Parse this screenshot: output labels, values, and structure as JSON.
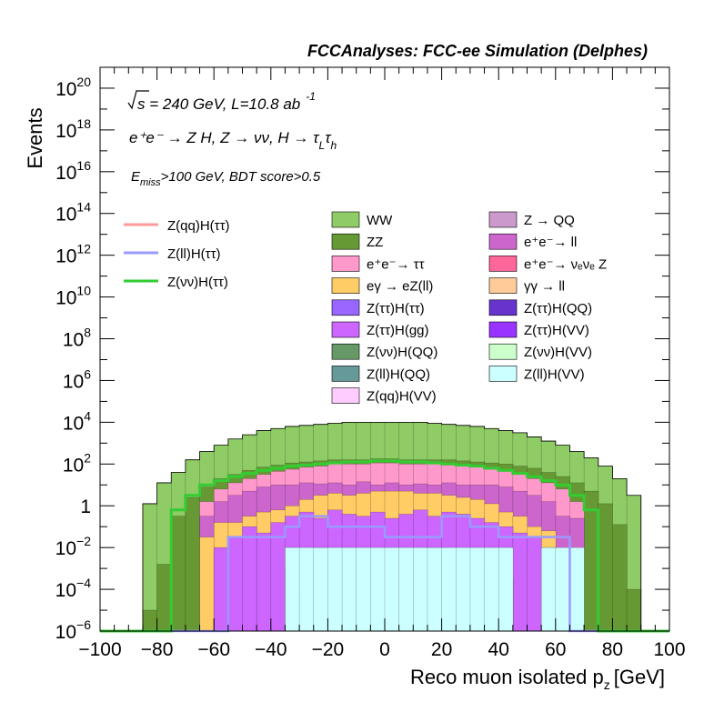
{
  "chart_data": {
    "type": "bar",
    "title": "FCCAnalyses: FCC-ee Simulation (Delphes)",
    "xlabel": "Reco muon isolated p",
    "xlabel_sub": "z",
    "xlabel_unit": "[GeV]",
    "ylabel": "Events",
    "xlim": [
      -100,
      100
    ],
    "ylim_log10": [
      -6,
      21
    ],
    "log_y": true,
    "x_ticks": [
      -100,
      -80,
      -60,
      -40,
      -20,
      0,
      20,
      40,
      60,
      80,
      100
    ],
    "x_tick_labels": [
      "−100",
      "−80",
      "−60",
      "−40",
      "−20",
      "0",
      "20",
      "40",
      "60",
      "80",
      "100"
    ],
    "y_ticks_exp": [
      -6,
      -4,
      -2,
      0,
      2,
      4,
      6,
      8,
      10,
      12,
      14,
      16,
      18,
      20
    ],
    "y_tick_special": {
      "0": "1"
    },
    "annotations": {
      "sqrt_s": "s",
      "energy_text": " = 240 GeV, L=10.8 ab",
      "lumi_exp": "-1",
      "process_text": "e⁺e⁻ → Z H, Z → νν, H → τ",
      "tau_l": "L",
      "tau2": "τ",
      "tau_h": "h",
      "cut_prefix": "E",
      "cut_sub": "miss",
      "cut_text": ">100 GeV, BDT score>0.5"
    },
    "legend_signal": [
      {
        "name": "Z(qq)H(ττ)",
        "color": "#ff9a9a"
      },
      {
        "name": "Z(ll)H(ττ)",
        "color": "#9a9aff"
      },
      {
        "name": "Z(νν)H(ττ)",
        "color": "#33cc33"
      }
    ],
    "legend_background": [
      {
        "name": "WW",
        "color": "#8fcc66"
      },
      {
        "name": "Z → QQ",
        "color": "#cc99cc"
      },
      {
        "name": "ZZ",
        "color": "#669933"
      },
      {
        "name": "e⁺e⁻→ ll",
        "color": "#cc66cc"
      },
      {
        "name": "e⁺e⁻→ ττ",
        "color": "#ff99cc"
      },
      {
        "name": "e⁺e⁻→ νₑνₑ Z",
        "color": "#ff6699"
      },
      {
        "name": "eγ → eZ(ll)",
        "color": "#ffcc66"
      },
      {
        "name": "γγ → ll",
        "color": "#ffcc99"
      },
      {
        "name": "Z(ττ)H(ττ)",
        "color": "#9966ff"
      },
      {
        "name": "Z(ττ)H(QQ)",
        "color": "#6633cc"
      },
      {
        "name": "Z(ττ)H(gg)",
        "color": "#cc66ff"
      },
      {
        "name": "Z(ττ)H(VV)",
        "color": "#9933ff"
      },
      {
        "name": "Z(νν)H(QQ)",
        "color": "#669966"
      },
      {
        "name": "Z(νν)H(VV)",
        "color": "#ccffcc"
      },
      {
        "name": "Z(ll)H(QQ)",
        "color": "#669999"
      },
      {
        "name": "Z(ll)H(VV)",
        "color": "#ccffff"
      },
      {
        "name": "Z(qq)H(VV)",
        "color": "#ffccff"
      }
    ],
    "bin_edges": [
      -100,
      -95,
      -90,
      -85,
      -80,
      -75,
      -70,
      -65,
      -60,
      -55,
      -50,
      -45,
      -40,
      -35,
      -30,
      -25,
      -20,
      -15,
      -10,
      -5,
      0,
      5,
      10,
      15,
      20,
      25,
      30,
      35,
      40,
      45,
      50,
      55,
      60,
      65,
      70,
      75,
      80,
      85,
      90,
      95,
      100
    ],
    "stack_top_log10": [
      -6,
      -6,
      -6,
      0.1,
      1.1,
      1.6,
      2.2,
      2.6,
      2.9,
      3.2,
      3.4,
      3.6,
      3.7,
      3.8,
      3.85,
      3.9,
      3.95,
      4,
      4,
      4,
      4,
      4,
      4,
      3.95,
      3.9,
      3.85,
      3.8,
      3.7,
      3.6,
      3.5,
      3.3,
      3.1,
      2.9,
      2.6,
      2.3,
      1.9,
      1.3,
      0.5,
      -6,
      -6
    ],
    "stack_layers": [
      {
        "name": "WW",
        "color": "#8fcc66",
        "top_log10": [
          -6,
          -6,
          -6,
          0.1,
          1.1,
          1.6,
          2.2,
          2.6,
          2.9,
          3.2,
          3.4,
          3.6,
          3.7,
          3.8,
          3.85,
          3.9,
          3.95,
          4,
          4,
          4,
          4,
          4,
          4,
          3.95,
          3.9,
          3.85,
          3.8,
          3.7,
          3.6,
          3.5,
          3.3,
          3.1,
          2.9,
          2.6,
          2.3,
          1.9,
          1.3,
          0.5,
          -6,
          -6
        ]
      },
      {
        "name": "ZZ",
        "color": "#669933",
        "top_log10": [
          -6,
          -6,
          -6,
          -5,
          -2.8,
          -0.5,
          0.4,
          0.9,
          1.3,
          1.5,
          1.7,
          1.85,
          1.95,
          2.05,
          2.1,
          2.15,
          2.2,
          2.2,
          2.2,
          2.25,
          2.25,
          2.2,
          2.2,
          2.2,
          2.2,
          2.15,
          2.1,
          2.05,
          2,
          1.9,
          1.8,
          1.6,
          1.4,
          1.1,
          0.7,
          0.1,
          -0.9,
          -4,
          -6,
          -6
        ]
      },
      {
        "name": "e⁺e⁻→ ττ",
        "color": "#ff99cc",
        "top_log10": [
          -6,
          -6,
          -6,
          -6,
          -6,
          -6,
          -6,
          0.2,
          0.8,
          1.1,
          1.3,
          1.5,
          1.65,
          1.75,
          1.85,
          1.9,
          2,
          2,
          2,
          2.05,
          2.05,
          2,
          2,
          2,
          1.95,
          1.9,
          1.85,
          1.75,
          1.65,
          1.5,
          1.3,
          1.1,
          0.8,
          0.2,
          -6,
          -6,
          -6,
          -6,
          -6,
          -6
        ]
      },
      {
        "name": "e⁺e⁻→ ll",
        "color": "#cc66cc",
        "top_log10": [
          -6,
          -6,
          -6,
          -6,
          -6,
          -6,
          -6,
          -0.5,
          0.2,
          0.5,
          0.7,
          0.9,
          1,
          1,
          1.1,
          1.05,
          1.1,
          1,
          1.15,
          1,
          1.1,
          1,
          1.05,
          1,
          1.1,
          1,
          1,
          1,
          0.9,
          0.7,
          0.5,
          0.2,
          -0.5,
          -0.6,
          -6,
          -6,
          -6,
          -6,
          -6,
          -6
        ]
      },
      {
        "name": "eγ → eZ(ll)",
        "color": "#ffcc66",
        "top_log10": [
          -6,
          -6,
          -6,
          -6,
          -6,
          -6,
          -6,
          -1.5,
          -0.8,
          -0.8,
          -0.5,
          -0.3,
          -0.2,
          0,
          0.3,
          0.5,
          0.6,
          0.5,
          0.6,
          0.7,
          0.7,
          0.7,
          0.6,
          0.6,
          0.5,
          0.4,
          0.3,
          0.1,
          -0.3,
          -0.5,
          -1,
          -1.2,
          -6,
          -6,
          -6,
          -6,
          -6,
          -6,
          -6,
          -6
        ]
      },
      {
        "name": "Z(ττ)H(gg)",
        "color": "#cc66ff",
        "top_log10": [
          -6,
          -6,
          -6,
          -6,
          -6,
          -6,
          -6,
          -6,
          -2,
          -1.5,
          -1,
          -1.3,
          -0.8,
          -0.5,
          -0.3,
          -0.6,
          -0.2,
          -0.4,
          -0.5,
          -0.3,
          -0.6,
          -0.4,
          -0.2,
          -0.5,
          -0.3,
          -0.4,
          -0.6,
          -0.8,
          -1,
          -1.3,
          -1.5,
          -2,
          -6,
          -6,
          -6,
          -6,
          -6,
          -6,
          -6,
          -6
        ]
      },
      {
        "name": "Z(ττ)H(QQ)",
        "color": "#6633cc",
        "top_log10": [
          -6,
          -6,
          -6,
          -6,
          -6,
          -6,
          -6,
          -6,
          -6,
          -6,
          -6,
          -6,
          -6,
          -3,
          -4.5,
          -2,
          -3.5,
          -2.5,
          -3,
          -4,
          -3,
          -2.5,
          -3.5,
          -2,
          -5,
          -2.5,
          -3,
          -3,
          -3.5,
          -6,
          -6,
          -6,
          -6,
          -6,
          -6,
          -6,
          -6,
          -6,
          -6,
          -6
        ]
      },
      {
        "name": "Z(ll)H(VV)",
        "color": "#ccffff",
        "top_log10": [
          -6,
          -6,
          -6,
          -6,
          -6,
          -6,
          -6,
          -6,
          -6,
          -6,
          -6,
          -6,
          -6,
          -2,
          -2,
          -2,
          -2,
          -2,
          -2,
          -2,
          -2,
          -2,
          -2,
          -2,
          -2,
          -2,
          -2,
          -2,
          -2,
          -6,
          -6,
          -2,
          -2,
          -2,
          -6,
          -6,
          -6,
          -6,
          -6,
          -6
        ]
      }
    ],
    "signal_znn_log10": [
      -6,
      -6,
      -6,
      -6,
      -6,
      -0.2,
      0.5,
      1,
      1.2,
      1.4,
      1.55,
      1.7,
      1.8,
      1.9,
      1.95,
      2,
      2.05,
      2.1,
      2.1,
      2.15,
      2.15,
      2.1,
      2.1,
      2.05,
      2,
      1.95,
      1.9,
      1.8,
      1.7,
      1.55,
      1.4,
      1.2,
      1,
      0.5,
      -0.2,
      -6,
      -6,
      -6,
      -6,
      -6
    ],
    "signal_zll_log10": [
      -6,
      -6,
      -6,
      -6,
      -6,
      -6,
      -6,
      -6,
      -6,
      -1.5,
      -1.5,
      -1.5,
      -1.5,
      -1,
      -0.5,
      -0.5,
      -1,
      -1,
      -1,
      -1,
      -1.5,
      -1.5,
      -1.5,
      -1.5,
      -0.5,
      -0.5,
      -1,
      -1,
      -1.5,
      -1.5,
      -1.5,
      -1.5,
      -1.5,
      -6,
      -6,
      -6,
      -6,
      -6,
      -6,
      -6
    ]
  }
}
